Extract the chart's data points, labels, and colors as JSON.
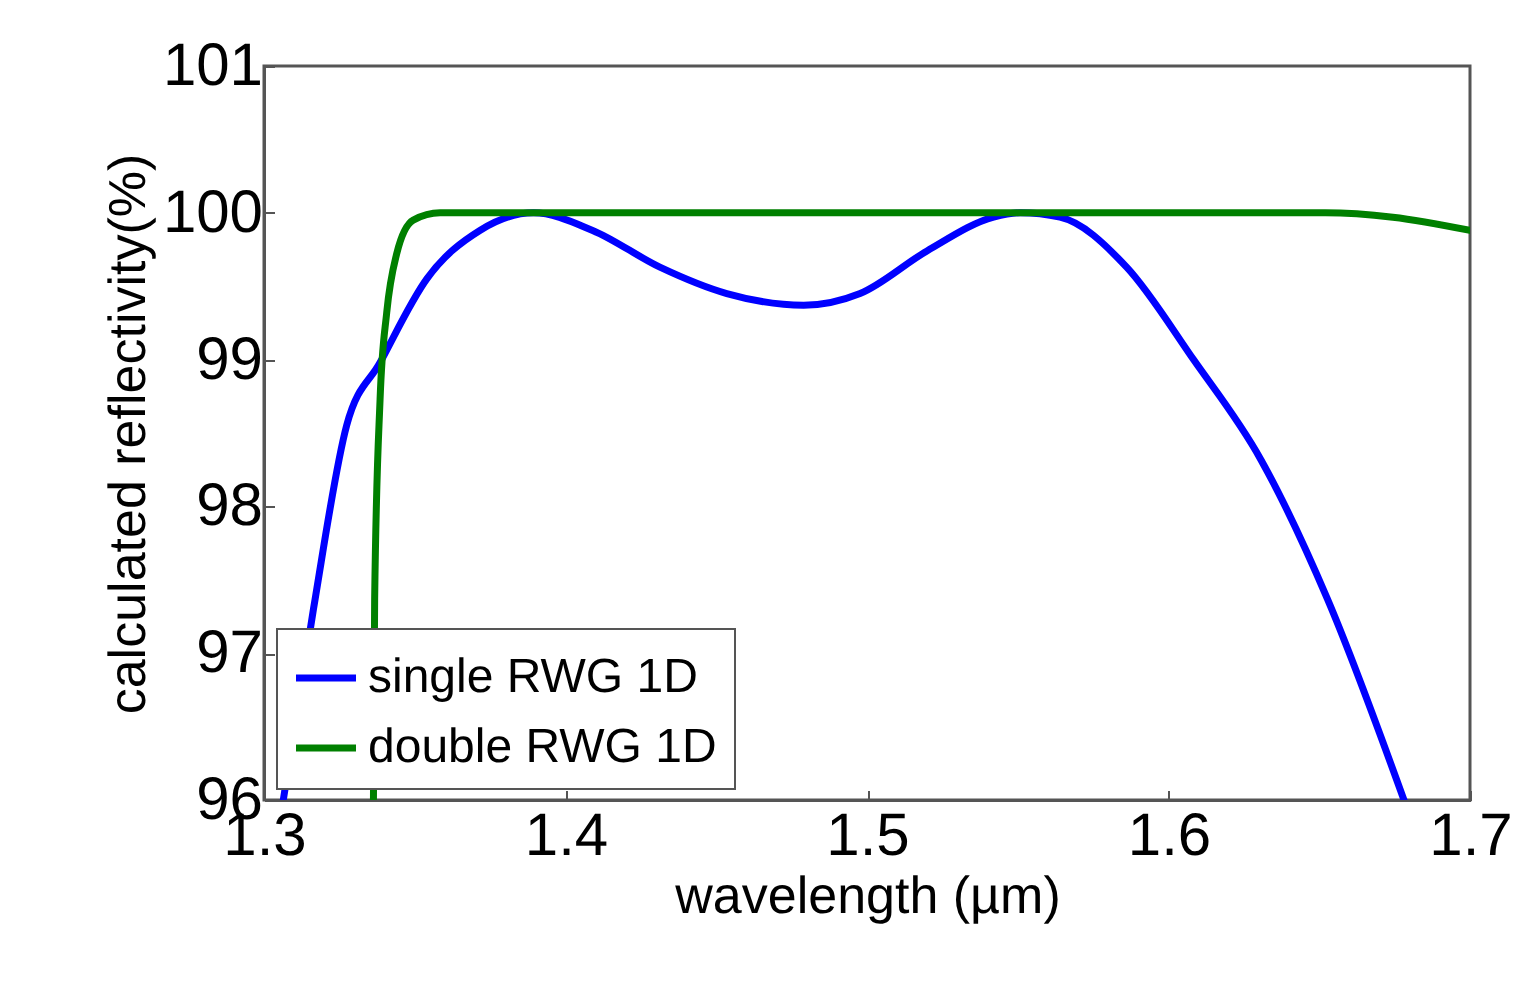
{
  "chart_data": {
    "type": "line",
    "xlabel": "wavelength (µm)",
    "ylabel": "calculated reflectivity(%)",
    "xlim": [
      1.3,
      1.7
    ],
    "xticks": [
      1.3,
      1.4,
      1.5,
      1.6,
      1.7
    ],
    "ylim": [
      96,
      101
    ],
    "yticks": [
      96,
      97,
      98,
      99,
      100,
      101
    ],
    "grid": false,
    "legend": "bottom left",
    "line_style": "solid",
    "marker": "none",
    "series": [
      {
        "name": "single RWG 1D",
        "color": "#0000ff",
        "x": [
          1.3064,
          1.3164,
          1.3274,
          1.3385,
          1.354,
          1.3716,
          1.3894,
          1.409,
          1.4313,
          1.4535,
          1.479,
          1.4977,
          1.5199,
          1.542,
          1.5508,
          1.564,
          1.5861,
          1.6083,
          1.6306,
          1.6527,
          1.6781
        ],
        "values": [
          96,
          97.3,
          98.55,
          98.98,
          99.55,
          99.88,
          100,
          99.88,
          99.63,
          99.45,
          99.37,
          99.45,
          99.74,
          99.97,
          100,
          99.97,
          99.63,
          99,
          98.32,
          97.37,
          96
        ]
      },
      {
        "name": "double RWG 1D",
        "color": "#008000",
        "x": [
          1.3363,
          1.3367,
          1.3385,
          1.3407,
          1.344,
          1.3495,
          1.3584,
          1.5,
          1.652,
          1.6744,
          1.7
        ],
        "values": [
          96,
          97.37,
          98.73,
          99.32,
          99.72,
          99.95,
          100,
          100,
          100,
          99.97,
          99.88
        ]
      }
    ]
  }
}
